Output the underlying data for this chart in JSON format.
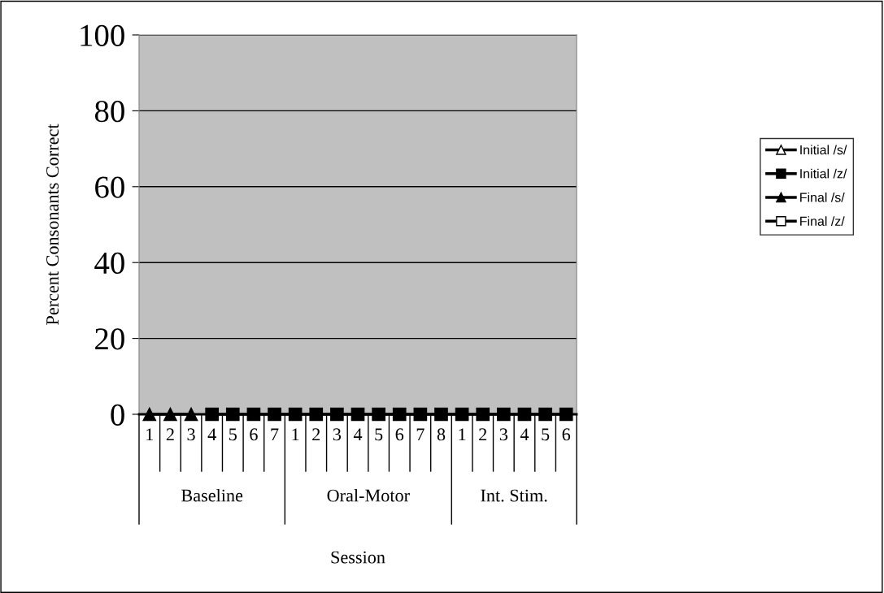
{
  "chart_data": {
    "type": "line",
    "ylabel": "Percent Consonants Correct",
    "categories": [
      "1",
      "2",
      "3",
      "4",
      "5",
      "6",
      "7",
      "1",
      "2",
      "3",
      "4",
      "5",
      "6",
      "7",
      "8",
      "1",
      "2",
      "3",
      "4",
      "5",
      "6"
    ],
    "annotations": [
      "Baseline",
      "Oral-Motor",
      "Int. Stim.",
      "Session"
    ],
    "series": [
      {
        "name": "Initial /s/",
        "color": "#000000",
        "marker": "open triangle",
        "values": [
          null,
          null,
          null,
          null,
          null,
          null,
          null,
          null,
          null,
          null,
          null,
          null,
          null,
          null,
          null,
          null,
          null,
          null,
          null,
          null,
          null
        ]
      },
      {
        "name": "Initial /z/",
        "color": "#000000",
        "marker": "square",
        "values": [
          null,
          null,
          null,
          0,
          0,
          0,
          0,
          0,
          0,
          0,
          0,
          0,
          0,
          0,
          0,
          0,
          0,
          0,
          0,
          0,
          0
        ]
      },
      {
        "name": "Final /s/",
        "color": "#000000",
        "marker": "triangle",
        "values": [
          0,
          0,
          0,
          null,
          null,
          null,
          null,
          null,
          null,
          null,
          null,
          null,
          null,
          null,
          null,
          null,
          null,
          null,
          null,
          null,
          null
        ]
      },
      {
        "name": "Final /z/",
        "color": "#000000",
        "marker": "open square",
        "values": [
          null,
          null,
          null,
          null,
          null,
          null,
          null,
          null,
          null,
          null,
          null,
          null,
          null,
          null,
          null,
          null,
          null,
          null,
          null,
          null,
          null
        ]
      }
    ],
    "ylim": [
      0,
      100
    ],
    "yticks": [
      0,
      20,
      40,
      60,
      80,
      100
    ],
    "grid": "y",
    "legend": "right",
    "line_style": "solid"
  }
}
